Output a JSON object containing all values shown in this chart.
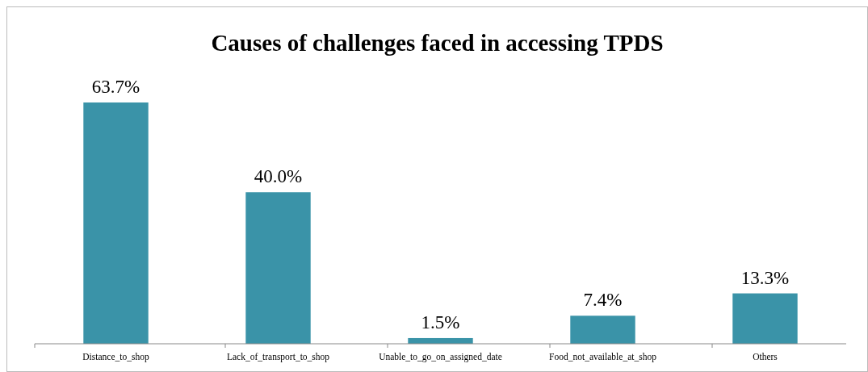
{
  "chart_data": {
    "type": "bar",
    "title": "Causes of challenges faced in accessing TPDS",
    "categories": [
      "Distance_to_shop",
      "Lack_of_transport_to_shop",
      "Unable_to_go_on_assigned_date",
      "Food_not_available_at_shop",
      "Others"
    ],
    "values": [
      63.7,
      40.0,
      1.5,
      7.4,
      13.3
    ],
    "value_labels": [
      "63.7%",
      "40.0%",
      "1.5%",
      "7.4%",
      "13.3%"
    ],
    "color": "#3a93a8"
  }
}
